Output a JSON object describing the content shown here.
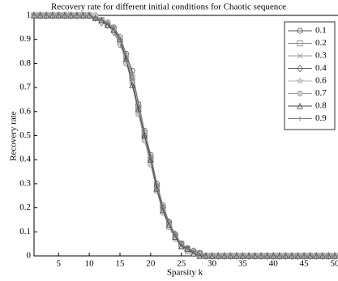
{
  "chart_data": {
    "type": "line",
    "title": "Recovery rate for different initial conditions for Chaotic sequence",
    "x_label": "Sparsity k",
    "y_label": "Recovery rate",
    "x": [
      1,
      2,
      3,
      4,
      5,
      6,
      7,
      8,
      9,
      10,
      11,
      12,
      13,
      14,
      15,
      16,
      17,
      18,
      19,
      20,
      21,
      22,
      23,
      24,
      25,
      26,
      27,
      28,
      29,
      30,
      31,
      32,
      33,
      34,
      35,
      36,
      37,
      38,
      39,
      40,
      41,
      42,
      43,
      44,
      45,
      46,
      47,
      48,
      49,
      50
    ],
    "xlim": [
      1,
      50
    ],
    "xticks": [
      5,
      10,
      15,
      20,
      25,
      30,
      35,
      40,
      45,
      50
    ],
    "ylim": [
      0,
      1
    ],
    "yticks": [
      0,
      0.1,
      0.2,
      0.3,
      0.4,
      0.5,
      0.6,
      0.7,
      0.8,
      0.9,
      1
    ],
    "grid": false,
    "legend": "upper right",
    "series": [
      {
        "name": "0.1",
        "color": "#555555",
        "marker": "o",
        "values": [
          1,
          1,
          1,
          1,
          1,
          1,
          1,
          1,
          1,
          1,
          0.99,
          0.98,
          0.97,
          0.95,
          0.91,
          0.84,
          0.77,
          0.63,
          0.52,
          0.42,
          0.3,
          0.21,
          0.14,
          0.09,
          0.05,
          0.03,
          0.02,
          0.01,
          0,
          0,
          0,
          0,
          0,
          0,
          0,
          0,
          0,
          0,
          0,
          0,
          0,
          0,
          0,
          0,
          0,
          0,
          0,
          0,
          0,
          0
        ]
      },
      {
        "name": "0.2",
        "color": "#8a8a8a",
        "marker": "s",
        "values": [
          1,
          1,
          1,
          1,
          1,
          1,
          1,
          1,
          1,
          1,
          0.99,
          0.98,
          0.96,
          0.94,
          0.9,
          0.83,
          0.74,
          0.61,
          0.5,
          0.4,
          0.28,
          0.2,
          0.13,
          0.08,
          0.05,
          0.03,
          0.01,
          0.01,
          0,
          0,
          0,
          0,
          0,
          0,
          0,
          0,
          0,
          0,
          0,
          0,
          0,
          0,
          0,
          0,
          0,
          0,
          0,
          0,
          0,
          0
        ]
      },
      {
        "name": "0.3",
        "color": "#9a9a9a",
        "marker": "x",
        "values": [
          1,
          1,
          1,
          1,
          1,
          1,
          1,
          1,
          1,
          1,
          0.99,
          0.98,
          0.97,
          0.94,
          0.89,
          0.82,
          0.73,
          0.6,
          0.49,
          0.39,
          0.27,
          0.19,
          0.12,
          0.08,
          0.04,
          0.02,
          0.01,
          0,
          0,
          0,
          0,
          0,
          0,
          0,
          0,
          0,
          0,
          0,
          0,
          0,
          0,
          0,
          0,
          0,
          0,
          0,
          0,
          0,
          0,
          0
        ]
      },
      {
        "name": "0.4",
        "color": "#666666",
        "marker": "d",
        "values": [
          1,
          1,
          1,
          1,
          1,
          1,
          1,
          1,
          1,
          1,
          0.99,
          0.97,
          0.96,
          0.93,
          0.88,
          0.81,
          0.72,
          0.62,
          0.5,
          0.41,
          0.29,
          0.2,
          0.14,
          0.09,
          0.05,
          0.03,
          0.02,
          0.01,
          0,
          0,
          0,
          0,
          0,
          0,
          0,
          0,
          0,
          0,
          0,
          0,
          0,
          0,
          0,
          0,
          0,
          0,
          0,
          0,
          0,
          0
        ]
      },
      {
        "name": "0.6",
        "color": "#b0b0b0",
        "marker": "*",
        "values": [
          1,
          1,
          1,
          1,
          1,
          1,
          1,
          1,
          1,
          1,
          0.99,
          0.98,
          0.97,
          0.95,
          0.9,
          0.83,
          0.75,
          0.62,
          0.51,
          0.4,
          0.28,
          0.21,
          0.13,
          0.09,
          0.05,
          0.02,
          0.01,
          0,
          0,
          0,
          0,
          0,
          0,
          0,
          0,
          0,
          0,
          0,
          0,
          0,
          0,
          0,
          0,
          0,
          0,
          0,
          0,
          0,
          0,
          0
        ]
      },
      {
        "name": "0.7",
        "color": "#a0a0a0",
        "marker": "h",
        "values": [
          1,
          1,
          1,
          1,
          1,
          1,
          1,
          1,
          1,
          1,
          1,
          0.98,
          0.97,
          0.94,
          0.89,
          0.8,
          0.72,
          0.59,
          0.48,
          0.38,
          0.27,
          0.18,
          0.12,
          0.07,
          0.04,
          0.02,
          0.01,
          0,
          0,
          0,
          0,
          0,
          0,
          0,
          0,
          0,
          0,
          0,
          0,
          0,
          0,
          0,
          0,
          0,
          0,
          0,
          0,
          0,
          0,
          0
        ]
      },
      {
        "name": "0.8",
        "color": "#444444",
        "marker": "^",
        "values": [
          1,
          1,
          1,
          1,
          1,
          1,
          1,
          1,
          1,
          1,
          0.99,
          0.98,
          0.96,
          0.94,
          0.9,
          0.82,
          0.71,
          0.61,
          0.5,
          0.4,
          0.28,
          0.19,
          0.13,
          0.08,
          0.04,
          0.03,
          0.01,
          0,
          0,
          0,
          0,
          0,
          0,
          0,
          0,
          0,
          0,
          0,
          0,
          0,
          0,
          0,
          0,
          0,
          0,
          0,
          0,
          0,
          0,
          0
        ]
      },
      {
        "name": "0.9",
        "color": "#777777",
        "marker": "+",
        "values": [
          1,
          1,
          1,
          1,
          1,
          1,
          1,
          1,
          1,
          1,
          0.99,
          0.98,
          0.97,
          0.95,
          0.9,
          0.84,
          0.76,
          0.64,
          0.52,
          0.41,
          0.3,
          0.2,
          0.14,
          0.09,
          0.05,
          0.03,
          0.02,
          0.01,
          0,
          0,
          0,
          0,
          0,
          0,
          0,
          0,
          0,
          0,
          0,
          0,
          0,
          0,
          0,
          0,
          0,
          0,
          0,
          0,
          0,
          0
        ]
      }
    ]
  }
}
